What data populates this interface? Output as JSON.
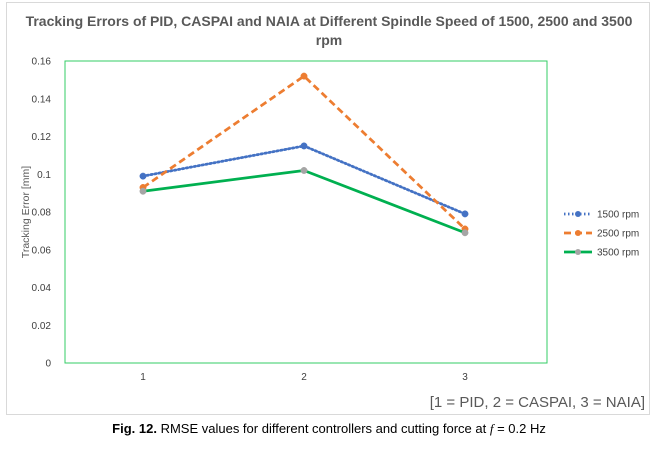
{
  "chart_data": {
    "type": "line",
    "title_lines": [
      "Tracking Errors of PID, CASPAI and NAIA at Different Spindle Speed of 1500, 2500 and 3500",
      "rpm"
    ],
    "xlabel": "",
    "ylabel": "Tracking Error [mm]",
    "x": [
      1,
      2,
      3
    ],
    "x_tick_labels": [
      "1",
      "2",
      "3"
    ],
    "y_tick_labels": [
      "0",
      "0.02",
      "0.04",
      "0.06",
      "0.08",
      "0.1",
      "0.12",
      "0.14",
      "0.16"
    ],
    "ylim": [
      0,
      0.16
    ],
    "grid": false,
    "legend_position": "right",
    "series": [
      {
        "name": "1500 rpm",
        "values": [
          0.099,
          0.115,
          0.079
        ],
        "color": "#4472c4",
        "line_style": "dotted"
      },
      {
        "name": "2500 rpm",
        "values": [
          0.093,
          0.152,
          0.071
        ],
        "color": "#ed7d31",
        "line_style": "dashed"
      },
      {
        "name": "3500 rpm",
        "values": [
          0.091,
          0.102,
          0.069
        ],
        "color": "#00b050",
        "line_style": "solid"
      }
    ],
    "annotation": "[1 = PID, 2 = CASPAI, 3 = NAIA]",
    "plot_border_color": "#33cc66"
  },
  "caption": {
    "prefix": "Fig. 12.",
    "text": " RMSE values for different controllers and cutting force at ",
    "symbol": "f",
    "suffix": " = 0.2 Hz"
  }
}
